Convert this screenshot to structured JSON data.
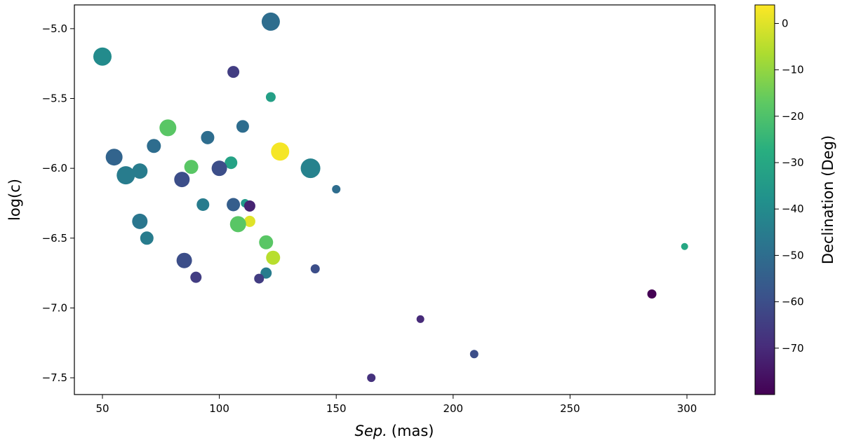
{
  "chart_data": {
    "type": "scatter",
    "title": "",
    "xlabel": "Sep.",
    "xlabel_unit": "(mas)",
    "ylabel": "log(c)",
    "colorbar_label": "Declination (Deg)",
    "xlim": [
      38,
      312
    ],
    "ylim": [
      -7.62,
      -4.83
    ],
    "x_ticks": [
      50,
      100,
      150,
      200,
      250,
      300
    ],
    "y_ticks": [
      -5.0,
      -5.5,
      -6.0,
      -6.5,
      -7.0,
      -7.5
    ],
    "colorbar_range": [
      -80,
      4
    ],
    "colorbar_ticks": [
      0,
      -10,
      -20,
      -30,
      -40,
      -50,
      -60,
      -70
    ],
    "colormap": "viridis",
    "grid": false,
    "points": [
      {
        "x": 122,
        "y": -4.95,
        "dec": -50,
        "size": 13
      },
      {
        "x": 50,
        "y": -5.2,
        "dec": -40,
        "size": 13
      },
      {
        "x": 106,
        "y": -5.31,
        "dec": -65,
        "size": 8.5
      },
      {
        "x": 122,
        "y": -5.49,
        "dec": -33,
        "size": 7
      },
      {
        "x": 110,
        "y": -5.7,
        "dec": -50,
        "size": 9
      },
      {
        "x": 78,
        "y": -5.71,
        "dec": -18,
        "size": 12
      },
      {
        "x": 95,
        "y": -5.78,
        "dec": -50,
        "size": 9.5
      },
      {
        "x": 72,
        "y": -5.84,
        "dec": -50,
        "size": 10
      },
      {
        "x": 126,
        "y": -5.88,
        "dec": 3,
        "size": 13
      },
      {
        "x": 55,
        "y": -5.92,
        "dec": -53,
        "size": 12
      },
      {
        "x": 105,
        "y": -5.96,
        "dec": -32,
        "size": 9
      },
      {
        "x": 88,
        "y": -5.99,
        "dec": -18,
        "size": 10
      },
      {
        "x": 100,
        "y": -6.0,
        "dec": -60,
        "size": 11
      },
      {
        "x": 139,
        "y": -6.0,
        "dec": -43,
        "size": 14
      },
      {
        "x": 66,
        "y": -6.02,
        "dec": -45,
        "size": 11
      },
      {
        "x": 60,
        "y": -6.05,
        "dec": -45,
        "size": 13
      },
      {
        "x": 84,
        "y": -6.08,
        "dec": -60,
        "size": 11
      },
      {
        "x": 150,
        "y": -6.15,
        "dec": -50,
        "size": 6
      },
      {
        "x": 93,
        "y": -6.26,
        "dec": -45,
        "size": 9
      },
      {
        "x": 111,
        "y": -6.25,
        "dec": -35,
        "size": 6
      },
      {
        "x": 106,
        "y": -6.26,
        "dec": -55,
        "size": 9.5
      },
      {
        "x": 113,
        "y": -6.27,
        "dec": -72,
        "size": 8
      },
      {
        "x": 113,
        "y": -6.38,
        "dec": 0,
        "size": 8
      },
      {
        "x": 108,
        "y": -6.4,
        "dec": -18,
        "size": 11.5
      },
      {
        "x": 66,
        "y": -6.38,
        "dec": -47,
        "size": 11
      },
      {
        "x": 69,
        "y": -6.5,
        "dec": -45,
        "size": 9.5
      },
      {
        "x": 120,
        "y": -6.53,
        "dec": -18,
        "size": 10
      },
      {
        "x": 123,
        "y": -6.64,
        "dec": -5,
        "size": 10
      },
      {
        "x": 85,
        "y": -6.66,
        "dec": -60,
        "size": 11
      },
      {
        "x": 141,
        "y": -6.72,
        "dec": -60,
        "size": 6.5
      },
      {
        "x": 120,
        "y": -6.75,
        "dec": -45,
        "size": 8
      },
      {
        "x": 90,
        "y": -6.78,
        "dec": -65,
        "size": 8
      },
      {
        "x": 117,
        "y": -6.79,
        "dec": -65,
        "size": 7
      },
      {
        "x": 299,
        "y": -6.56,
        "dec": -30,
        "size": 5
      },
      {
        "x": 285,
        "y": -6.9,
        "dec": -80,
        "size": 6.5
      },
      {
        "x": 186,
        "y": -7.08,
        "dec": -70,
        "size": 5.5
      },
      {
        "x": 209,
        "y": -7.33,
        "dec": -60,
        "size": 6
      },
      {
        "x": 165,
        "y": -7.5,
        "dec": -68,
        "size": 6
      }
    ]
  }
}
